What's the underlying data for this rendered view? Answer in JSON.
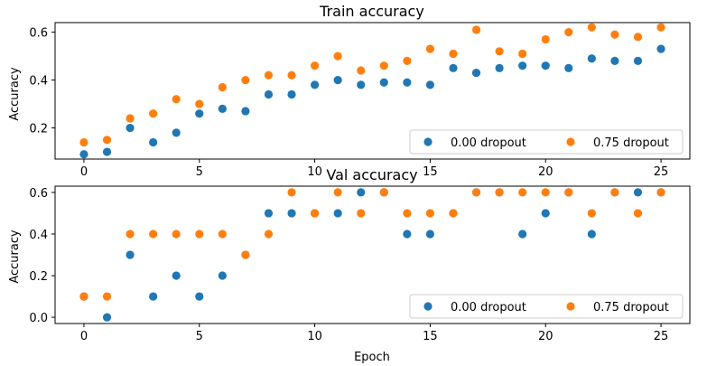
{
  "colors": {
    "series_0": "#1f77b4",
    "series_1": "#ff7f0e",
    "axes": "#000000",
    "legend_border": "#cccccc"
  },
  "chart_data": [
    {
      "type": "scatter",
      "title": "Train accuracy",
      "xlabel": "",
      "ylabel": "Accuracy",
      "xlim": [
        -1.25,
        26.25
      ],
      "ylim": [
        0.07,
        0.64
      ],
      "xticks": [
        0,
        5,
        10,
        15,
        20,
        25
      ],
      "yticks": [
        0.2,
        0.4,
        0.6
      ],
      "ytick_labels": [
        "0.2",
        "0.4",
        "0.6"
      ],
      "grid": false,
      "legend": {
        "placement": "lower-right",
        "ncol": 2
      },
      "x": [
        0,
        1,
        2,
        3,
        4,
        5,
        6,
        7,
        8,
        9,
        10,
        11,
        12,
        13,
        14,
        15,
        16,
        17,
        18,
        19,
        20,
        21,
        22,
        23,
        24,
        25
      ],
      "series": [
        {
          "name": "0.00 dropout",
          "values": [
            0.09,
            0.1,
            0.2,
            0.14,
            0.18,
            0.26,
            0.28,
            0.27,
            0.34,
            0.34,
            0.38,
            0.4,
            0.38,
            0.39,
            0.39,
            0.38,
            0.45,
            0.43,
            0.45,
            0.46,
            0.46,
            0.45,
            0.49,
            0.48,
            0.48,
            0.53
          ]
        },
        {
          "name": "0.75 dropout",
          "values": [
            0.14,
            0.15,
            0.24,
            0.26,
            0.32,
            0.3,
            0.37,
            0.4,
            0.42,
            0.42,
            0.46,
            0.5,
            0.44,
            0.46,
            0.48,
            0.53,
            0.51,
            0.61,
            0.52,
            0.51,
            0.57,
            0.6,
            0.62,
            0.59,
            0.58,
            0.62
          ]
        }
      ]
    },
    {
      "type": "scatter",
      "title": "Val accuracy",
      "xlabel": "Epoch",
      "ylabel": "Accuracy",
      "xlim": [
        -1.25,
        26.25
      ],
      "ylim": [
        -0.03,
        0.63
      ],
      "xticks": [
        0,
        5,
        10,
        15,
        20,
        25
      ],
      "yticks": [
        0.0,
        0.2,
        0.4,
        0.6
      ],
      "ytick_labels": [
        "0.0",
        "0.2",
        "0.4",
        "0.6"
      ],
      "grid": false,
      "legend": {
        "placement": "lower-right",
        "ncol": 2
      },
      "x": [
        0,
        1,
        2,
        3,
        4,
        5,
        6,
        7,
        8,
        9,
        10,
        11,
        12,
        13,
        14,
        15,
        16,
        17,
        18,
        19,
        20,
        21,
        22,
        23,
        24,
        25
      ],
      "series": [
        {
          "name": "0.00 dropout",
          "values": [
            0.1,
            0.0,
            0.3,
            0.1,
            0.2,
            0.1,
            0.2,
            0.3,
            0.5,
            0.5,
            0.5,
            0.5,
            0.6,
            0.6,
            0.4,
            0.4,
            0.5,
            0.6,
            0.6,
            0.4,
            0.5,
            0.6,
            0.4,
            0.6,
            0.6,
            0.6
          ]
        },
        {
          "name": "0.75 dropout",
          "values": [
            0.1,
            0.1,
            0.4,
            0.4,
            0.4,
            0.4,
            0.4,
            0.3,
            0.4,
            0.6,
            0.5,
            0.6,
            0.5,
            0.6,
            0.5,
            0.5,
            0.5,
            0.6,
            0.6,
            0.6,
            0.6,
            0.6,
            0.5,
            0.6,
            0.5,
            0.6
          ]
        }
      ]
    }
  ]
}
